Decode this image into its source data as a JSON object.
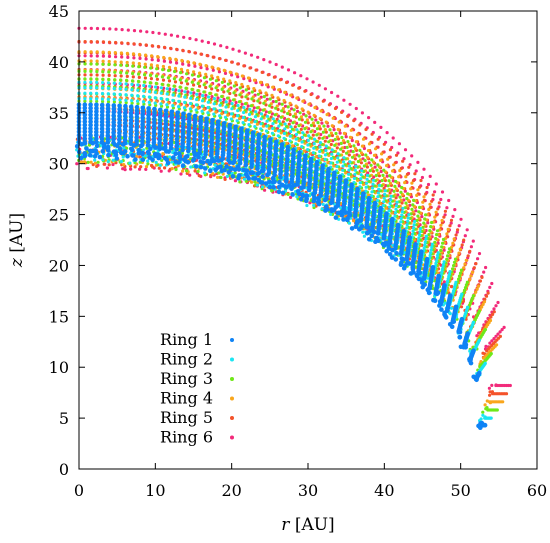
{
  "chart_data": {
    "type": "scatter",
    "title": "",
    "xlabel": {
      "var": "r",
      "unit": " [AU]"
    },
    "ylabel": {
      "var": "z",
      "unit": " [AU]"
    },
    "xlim": [
      0,
      60
    ],
    "ylim": [
      0,
      45
    ],
    "xticks": [
      0,
      10,
      20,
      30,
      40,
      50,
      60
    ],
    "yticks": [
      0,
      5,
      10,
      15,
      20,
      25,
      30,
      35,
      40,
      45
    ],
    "grid": false,
    "legend_position": "bottom-left",
    "note": "Each ring is a band of points along an elliptical arc from r=0 to its tip near r~53-56 AU; values below are the band's inner and outer edges.",
    "series": [
      {
        "name": "Ring 1",
        "color": "#0f83f5",
        "inner_edge_z_at_r0": 30.8,
        "outer_edge_z_at_r0": 35.8,
        "tip": [
          52.6,
          4.3
        ],
        "outer_tip_r": 53.2
      },
      {
        "name": "Ring 2",
        "color": "#1be5f2",
        "inner_edge_z_at_r0": 30.5,
        "outer_edge_z_at_r0": 38.0,
        "tip": [
          52.8,
          5.0
        ],
        "outer_tip_r": 54.0
      },
      {
        "name": "Ring 3",
        "color": "#6fe818",
        "inner_edge_z_at_r0": 30.3,
        "outer_edge_z_at_r0": 39.8,
        "tip": [
          53.0,
          5.8
        ],
        "outer_tip_r": 54.8
      },
      {
        "name": "Ring 4",
        "color": "#f9a61c",
        "inner_edge_z_at_r0": 30.2,
        "outer_edge_z_at_r0": 41.0,
        "tip": [
          53.2,
          6.6
        ],
        "outer_tip_r": 55.5
      },
      {
        "name": "Ring 5",
        "color": "#f4532b",
        "inner_edge_z_at_r0": 30.0,
        "outer_edge_z_at_r0": 42.0,
        "tip": [
          53.5,
          7.4
        ],
        "outer_tip_r": 56.0
      },
      {
        "name": "Ring 6",
        "color": "#f22a7a",
        "inner_edge_z_at_r0": 29.8,
        "outer_edge_z_at_r0": 43.3,
        "tip": [
          53.8,
          8.2
        ],
        "outer_tip_r": 56.5
      }
    ]
  }
}
